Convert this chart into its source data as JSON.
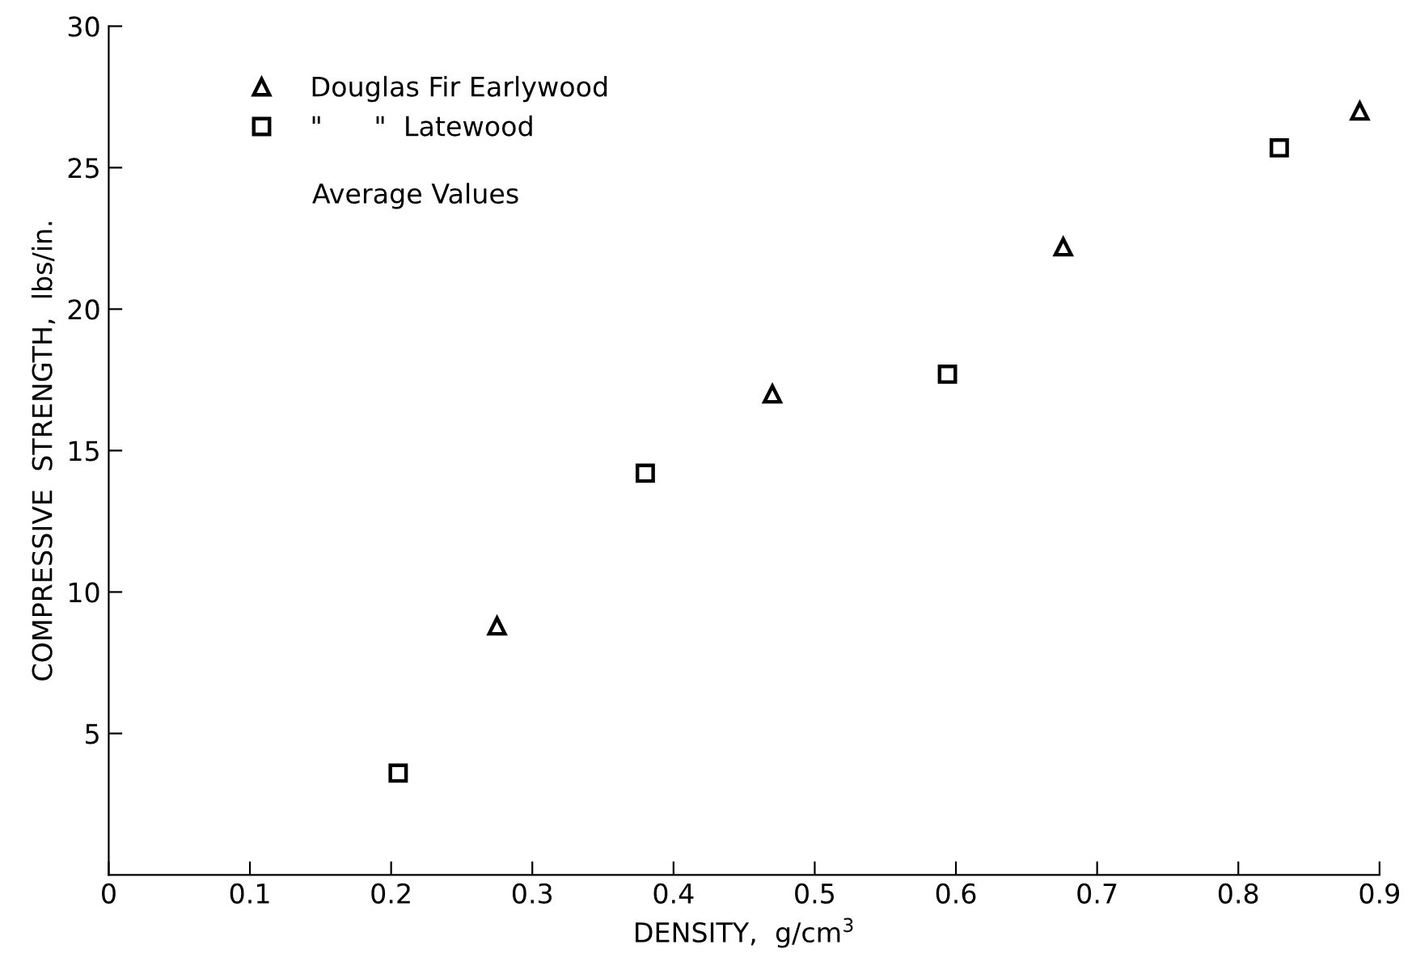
{
  "chart_data": {
    "type": "scatter",
    "xlabel": "DENSITY,  g/cm$^{3}$",
    "ylabel": "COMPRESSIVE  STRENGTH,  lbs/in.",
    "xlim": [
      0,
      0.9
    ],
    "xticks": [
      0,
      0.1,
      0.2,
      0.3,
      0.4,
      0.5,
      0.6,
      0.7,
      0.8,
      0.9
    ],
    "ylim": [
      0,
      30
    ],
    "yticks": [
      5,
      10,
      15,
      20,
      25,
      30
    ],
    "grid": false,
    "legend": "top left",
    "series": [
      {
        "name": "Douglas Fir Earlywood",
        "color": "#000000",
        "marker": "triangle",
        "x": [
          0.275,
          0.47,
          0.676,
          0.886
        ],
        "values": [
          8.8,
          17.0,
          22.2,
          27.0
        ]
      },
      {
        "name": "\"      \"  Latewood",
        "color": "#000000",
        "marker": "square",
        "x": [
          0.205,
          0.38,
          0.594,
          0.829
        ],
        "values": [
          3.6,
          14.2,
          17.7,
          25.7
        ]
      }
    ],
    "annotations": [
      "Average Values"
    ]
  }
}
